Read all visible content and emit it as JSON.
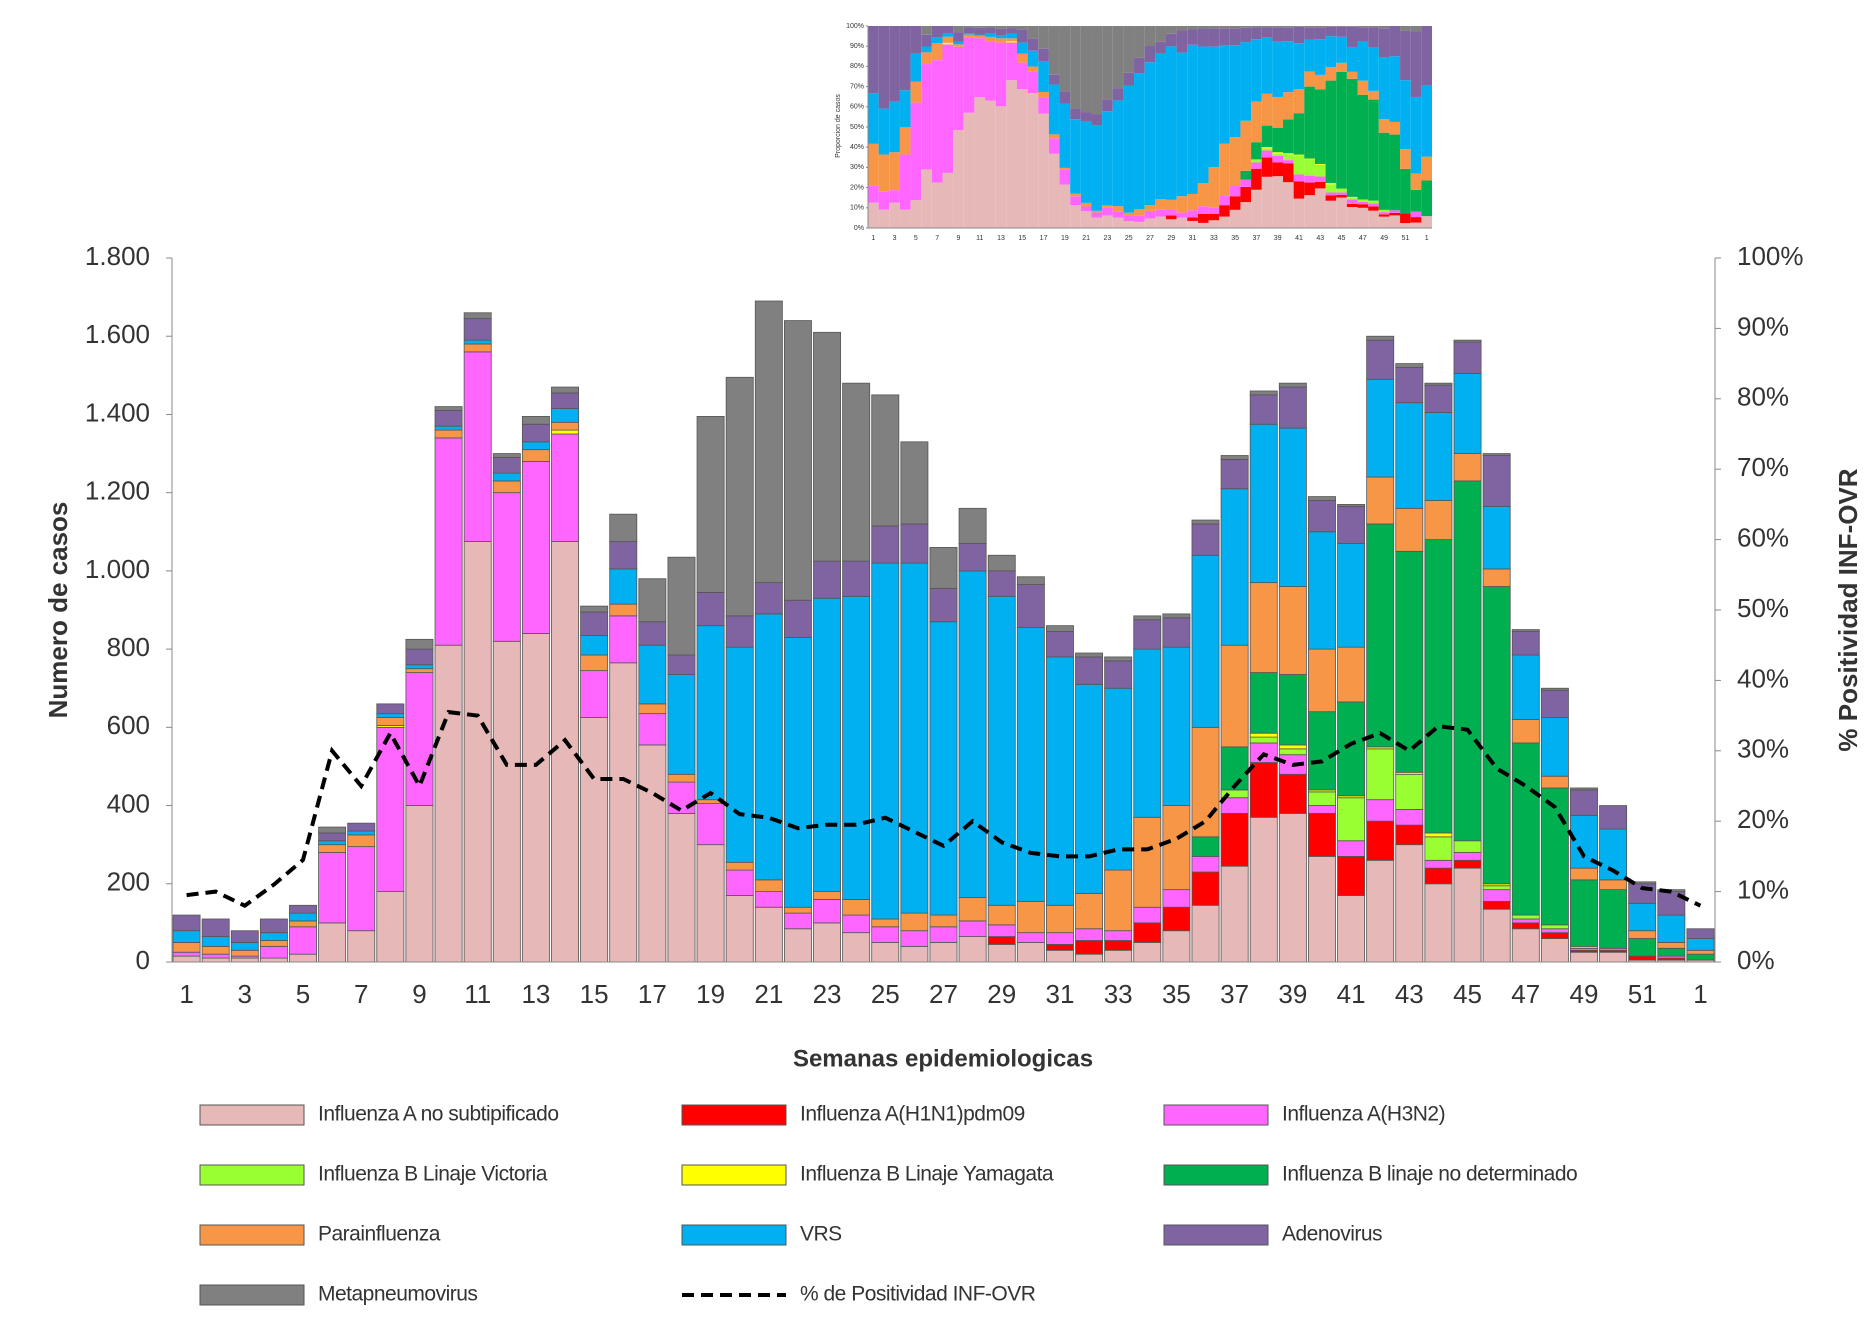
{
  "chart_data": [
    {
      "type": "stacked_bar",
      "xlabel": "Semanas epidemiologicas",
      "ylabel": "Numero de casos",
      "y2label": "% Positividad  INF-OVR",
      "categories": [
        "1",
        null,
        "3",
        null,
        "5",
        null,
        "7",
        null,
        "9",
        null,
        "11",
        null,
        "13",
        null,
        "15",
        null,
        "17",
        null,
        "19",
        null,
        "21",
        null,
        "23",
        null,
        "25",
        null,
        "27",
        null,
        "29",
        null,
        "31",
        null,
        "33",
        null,
        "35",
        null,
        "37",
        null,
        "39",
        null,
        "41",
        null,
        "43",
        null,
        "45",
        null,
        "47",
        null,
        "49",
        null,
        "51",
        null,
        "1"
      ],
      "ylim": [
        0,
        1800
      ],
      "yticks": [
        0,
        200,
        400,
        600,
        800,
        {
          "value": 1000,
          "label": "1.000"
        },
        {
          "value": 1200,
          "label": "1.200"
        },
        {
          "value": 1400,
          "label": "1.400"
        },
        {
          "value": 1600,
          "label": "1.600"
        },
        {
          "value": 1800,
          "label": "1.800"
        }
      ],
      "y2lim": [
        0,
        100
      ],
      "y2ticks": [
        {
          "value": 0,
          "label": "0%"
        },
        {
          "value": 10,
          "label": "10%"
        },
        {
          "value": 20,
          "label": "20%"
        },
        {
          "value": 30,
          "label": "30%"
        },
        {
          "value": 40,
          "label": "40%"
        },
        {
          "value": 50,
          "label": "50%"
        },
        {
          "value": 60,
          "label": "60%"
        },
        {
          "value": 70,
          "label": "70%"
        },
        {
          "value": 80,
          "label": "80%"
        },
        {
          "value": 90,
          "label": "90%"
        },
        {
          "value": 100,
          "label": "100%"
        }
      ],
      "series": [
        {
          "name": "Influenza A no subtipificado",
          "color": "#e6b8b7",
          "values": [
            15,
            10,
            10,
            10,
            20,
            100,
            80,
            180,
            400,
            810,
            1075,
            820,
            840,
            1075,
            625,
            765,
            555,
            380,
            300,
            170,
            140,
            85,
            100,
            75,
            50,
            40,
            50,
            65,
            45,
            50,
            30,
            20,
            30,
            50,
            80,
            145,
            245,
            370,
            380,
            270,
            170,
            260,
            300,
            200,
            240,
            135,
            85,
            60,
            25,
            25,
            5,
            5,
            5
          ]
        },
        {
          "name": "Influenza A(H1N1)pdm09",
          "color": "#ff0000",
          "values": [
            0,
            0,
            0,
            0,
            0,
            0,
            0,
            0,
            0,
            0,
            0,
            0,
            0,
            0,
            0,
            0,
            0,
            0,
            0,
            0,
            0,
            0,
            0,
            0,
            0,
            0,
            0,
            0,
            20,
            0,
            15,
            35,
            25,
            50,
            60,
            85,
            135,
            140,
            100,
            110,
            100,
            100,
            50,
            40,
            20,
            20,
            15,
            15,
            5,
            5,
            10,
            5,
            0
          ]
        },
        {
          "name": "Influenza A(H3N2)",
          "color": "#ff66ff",
          "values": [
            10,
            10,
            5,
            30,
            70,
            180,
            215,
            420,
            340,
            530,
            485,
            380,
            440,
            275,
            120,
            120,
            80,
            80,
            105,
            65,
            40,
            40,
            60,
            45,
            40,
            40,
            40,
            40,
            30,
            25,
            30,
            30,
            25,
            40,
            45,
            40,
            40,
            50,
            50,
            20,
            40,
            55,
            40,
            20,
            20,
            30,
            10,
            10,
            5,
            5,
            0,
            5,
            0
          ]
        },
        {
          "name": "Influenza B Linaje Victoria",
          "color": "#99ff33",
          "values": [
            0,
            0,
            0,
            0,
            0,
            0,
            0,
            0,
            0,
            0,
            0,
            0,
            0,
            0,
            0,
            0,
            0,
            0,
            0,
            0,
            0,
            0,
            0,
            0,
            0,
            0,
            0,
            0,
            0,
            0,
            0,
            0,
            0,
            0,
            0,
            0,
            20,
            15,
            15,
            35,
            110,
            130,
            90,
            60,
            30,
            10,
            10,
            10,
            5,
            0,
            0,
            0,
            0
          ]
        },
        {
          "name": "Influenza B Linaje Yamagata",
          "color": "#ffff00",
          "values": [
            0,
            0,
            0,
            0,
            0,
            0,
            0,
            5,
            0,
            0,
            0,
            0,
            0,
            10,
            0,
            0,
            0,
            0,
            0,
            0,
            0,
            0,
            0,
            0,
            0,
            0,
            0,
            0,
            0,
            0,
            0,
            0,
            0,
            0,
            0,
            0,
            0,
            10,
            10,
            5,
            5,
            5,
            5,
            10,
            0,
            5,
            0,
            0,
            0,
            0,
            0,
            0,
            0
          ]
        },
        {
          "name": "Influenza B linaje no determinado",
          "color": "#00b050",
          "values": [
            0,
            0,
            0,
            0,
            0,
            0,
            0,
            0,
            0,
            0,
            0,
            0,
            0,
            0,
            0,
            0,
            0,
            0,
            0,
            0,
            0,
            0,
            0,
            0,
            0,
            0,
            0,
            0,
            0,
            0,
            0,
            0,
            0,
            0,
            0,
            50,
            110,
            155,
            180,
            200,
            240,
            570,
            565,
            750,
            920,
            760,
            440,
            350,
            170,
            150,
            45,
            20,
            15
          ]
        },
        {
          "name": "Parainfluenza",
          "color": "#f79646",
          "values": [
            25,
            20,
            15,
            15,
            15,
            20,
            30,
            20,
            10,
            20,
            20,
            30,
            30,
            20,
            40,
            30,
            25,
            20,
            10,
            20,
            30,
            15,
            20,
            40,
            20,
            45,
            30,
            60,
            50,
            80,
            70,
            90,
            155,
            230,
            215,
            280,
            260,
            230,
            225,
            160,
            140,
            120,
            110,
            100,
            70,
            45,
            60,
            30,
            30,
            25,
            20,
            15,
            10
          ]
        },
        {
          "name": "VRS",
          "color": "#00b0f0",
          "values": [
            30,
            25,
            20,
            20,
            20,
            10,
            10,
            10,
            10,
            10,
            10,
            20,
            20,
            35,
            50,
            90,
            150,
            255,
            445,
            550,
            680,
            690,
            750,
            775,
            910,
            895,
            750,
            835,
            790,
            700,
            635,
            535,
            465,
            430,
            405,
            440,
            400,
            405,
            405,
            300,
            265,
            250,
            270,
            225,
            205,
            160,
            165,
            150,
            135,
            130,
            70,
            70,
            30
          ]
        },
        {
          "name": "Adenovirus",
          "color": "#8064a2",
          "values": [
            40,
            45,
            30,
            35,
            20,
            20,
            20,
            25,
            40,
            40,
            55,
            40,
            45,
            40,
            60,
            70,
            60,
            50,
            85,
            80,
            80,
            95,
            95,
            90,
            95,
            100,
            85,
            70,
            65,
            110,
            65,
            70,
            70,
            75,
            75,
            80,
            75,
            75,
            105,
            80,
            95,
            100,
            90,
            70,
            80,
            130,
            60,
            70,
            65,
            60,
            50,
            60,
            25
          ]
        },
        {
          "name": "Metapneumovirus",
          "color": "#808080",
          "values": [
            0,
            0,
            0,
            0,
            0,
            15,
            0,
            0,
            25,
            10,
            15,
            10,
            20,
            15,
            15,
            70,
            110,
            250,
            450,
            610,
            720,
            715,
            585,
            455,
            335,
            210,
            105,
            90,
            40,
            20,
            15,
            10,
            10,
            10,
            10,
            10,
            10,
            10,
            10,
            10,
            5,
            10,
            10,
            5,
            5,
            5,
            5,
            5,
            5,
            0,
            5,
            5,
            0
          ]
        },
        {
          "name": "% de Positividad INF-OVR",
          "color": "#000000",
          "axis": "y2",
          "dashed": true,
          "values": [
            9.5,
            10,
            8,
            11,
            14.5,
            30,
            25,
            32.5,
            25,
            35.5,
            35,
            28,
            28,
            31.5,
            26,
            26,
            24,
            21.5,
            24,
            21,
            20.5,
            19,
            19.5,
            19.5,
            20.5,
            18.5,
            16.5,
            20,
            17,
            15.5,
            15,
            15,
            16,
            16,
            17.5,
            20,
            25,
            29.5,
            28,
            28.5,
            31,
            32.5,
            30,
            33.5,
            33,
            27.5,
            25,
            22,
            15,
            13,
            10.5,
            10,
            8
          ]
        }
      ]
    },
    {
      "type": "percent_bar",
      "ylabel": "Proporcion de casos",
      "categories": [
        "1",
        null,
        "3",
        null,
        "5",
        null,
        "7",
        null,
        "9",
        null,
        "11",
        null,
        "13",
        null,
        "15",
        null,
        "17",
        null,
        "19",
        null,
        "21",
        null,
        "23",
        null,
        "25",
        null,
        "27",
        null,
        "29",
        null,
        "31",
        null,
        "33",
        null,
        "35",
        null,
        "37",
        null,
        "39",
        null,
        "41",
        null,
        "43",
        null,
        "45",
        null,
        "47",
        null,
        "49",
        null,
        "51",
        null,
        "1"
      ],
      "ylim": [
        0,
        100
      ],
      "yticks": [
        {
          "value": 0,
          "label": "0%"
        },
        {
          "value": 10,
          "label": "10%"
        },
        {
          "value": 20,
          "label": "20%"
        },
        {
          "value": 30,
          "label": "30%"
        },
        {
          "value": 40,
          "label": "40%"
        },
        {
          "value": 50,
          "label": "50%"
        },
        {
          "value": 60,
          "label": "60%"
        },
        {
          "value": 70,
          "label": "70%"
        },
        {
          "value": 80,
          "label": "80%"
        },
        {
          "value": 90,
          "label": "90%"
        },
        {
          "value": 100,
          "label": "100%"
        }
      ]
    }
  ]
}
